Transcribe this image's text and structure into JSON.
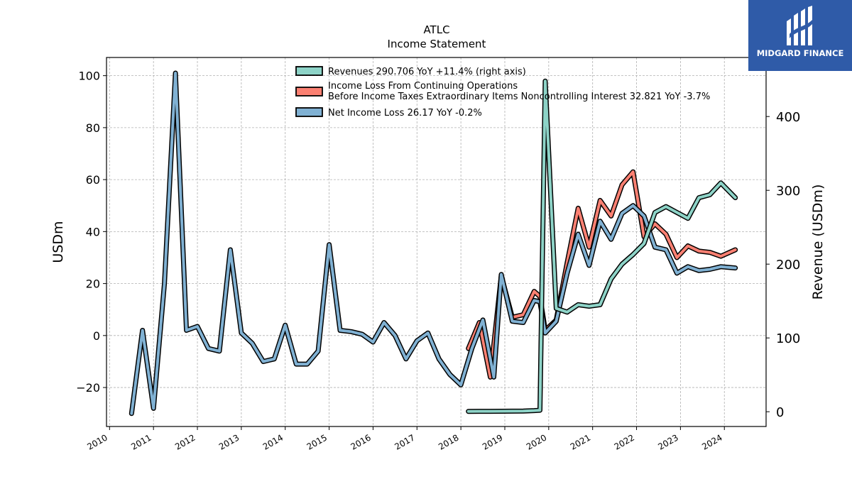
{
  "chart_data": {
    "type": "line",
    "title": "ATLC",
    "subtitle": "Income Statement",
    "ylabel": "USDm",
    "ylabel_right": "Revenue (USDm)",
    "ylim": [
      -35,
      107
    ],
    "ylim_right": [
      -20,
      480
    ],
    "yticks": [
      -20,
      0,
      20,
      40,
      60,
      80,
      100
    ],
    "yticks_labels": [
      "−20",
      "0",
      "20",
      "40",
      "60",
      "80",
      "100"
    ],
    "yticks_right": [
      0,
      100,
      200,
      300,
      400
    ],
    "xlim": [
      2009.93,
      2024.95
    ],
    "xticks": [
      "2010",
      "2011",
      "2012",
      "2013",
      "2014",
      "2015",
      "2016",
      "2017",
      "2018",
      "2019",
      "2020",
      "2021",
      "2022",
      "2023",
      "2024"
    ],
    "grid": true,
    "legend_position": "top-center",
    "series": [
      {
        "name": "Revenues  290.706 YoY +11.4% (right axis)",
        "color": "#8dd3c7",
        "axis": "right",
        "points": [
          [
            2018.17,
            0.5
          ],
          [
            2018.42,
            0.6
          ],
          [
            2018.67,
            0.6
          ],
          [
            2018.92,
            0.7
          ],
          [
            2019.17,
            0.8
          ],
          [
            2019.42,
            1.0
          ],
          [
            2019.67,
            1.5
          ],
          [
            2019.8,
            2.0
          ],
          [
            2019.92,
            448
          ],
          [
            2020.17,
            140
          ],
          [
            2020.42,
            135
          ],
          [
            2020.67,
            145
          ],
          [
            2020.92,
            143
          ],
          [
            2021.17,
            145
          ],
          [
            2021.42,
            180
          ],
          [
            2021.67,
            200
          ],
          [
            2021.92,
            213
          ],
          [
            2022.17,
            228
          ],
          [
            2022.42,
            270
          ],
          [
            2022.67,
            278
          ],
          [
            2022.92,
            270
          ],
          [
            2023.17,
            262
          ],
          [
            2023.42,
            290
          ],
          [
            2023.67,
            294
          ],
          [
            2023.92,
            310
          ],
          [
            2024.25,
            290
          ]
        ]
      },
      {
        "name": "Income Loss From Continuing Operations\nBefore Income Taxes Extraordinary Items Noncontrolling Interest  32.821 YoY -3.7%",
        "color": "#fb8072",
        "axis": "left",
        "points": [
          [
            2018.17,
            -5
          ],
          [
            2018.42,
            5
          ],
          [
            2018.67,
            -16
          ],
          [
            2018.92,
            23
          ],
          [
            2019.17,
            7
          ],
          [
            2019.42,
            8
          ],
          [
            2019.67,
            17
          ],
          [
            2019.8,
            15
          ],
          [
            2019.92,
            2
          ],
          [
            2020.17,
            6
          ],
          [
            2020.42,
            28
          ],
          [
            2020.67,
            49
          ],
          [
            2020.92,
            34
          ],
          [
            2021.17,
            52
          ],
          [
            2021.42,
            46
          ],
          [
            2021.67,
            58
          ],
          [
            2021.92,
            63
          ],
          [
            2022.17,
            38
          ],
          [
            2022.42,
            43
          ],
          [
            2022.67,
            39
          ],
          [
            2022.92,
            30
          ],
          [
            2023.17,
            34.5
          ],
          [
            2023.42,
            32.5
          ],
          [
            2023.67,
            32
          ],
          [
            2023.92,
            30.5
          ],
          [
            2024.25,
            33
          ]
        ]
      },
      {
        "name": "Net Income Loss  26.17 YoY -0.2%",
        "color": "#80b1d3",
        "axis": "left",
        "points": [
          [
            2010.5,
            -30
          ],
          [
            2010.75,
            2
          ],
          [
            2011.0,
            -28
          ],
          [
            2011.25,
            20
          ],
          [
            2011.5,
            101
          ],
          [
            2011.75,
            2
          ],
          [
            2012.0,
            3.5
          ],
          [
            2012.25,
            -5
          ],
          [
            2012.5,
            -6
          ],
          [
            2012.75,
            33
          ],
          [
            2013.0,
            1
          ],
          [
            2013.25,
            -3
          ],
          [
            2013.5,
            -10
          ],
          [
            2013.75,
            -9
          ],
          [
            2014.0,
            4
          ],
          [
            2014.25,
            -11
          ],
          [
            2014.5,
            -11
          ],
          [
            2014.75,
            -6
          ],
          [
            2015.0,
            35
          ],
          [
            2015.25,
            2
          ],
          [
            2015.5,
            1.5
          ],
          [
            2015.75,
            0.5
          ],
          [
            2016.0,
            -2.5
          ],
          [
            2016.25,
            5
          ],
          [
            2016.5,
            0
          ],
          [
            2016.75,
            -9
          ],
          [
            2017.0,
            -2
          ],
          [
            2017.25,
            1
          ],
          [
            2017.5,
            -9
          ],
          [
            2017.75,
            -15
          ],
          [
            2018.0,
            -19
          ],
          [
            2018.25,
            -5
          ],
          [
            2018.5,
            6
          ],
          [
            2018.75,
            -16
          ],
          [
            2018.92,
            23.5
          ],
          [
            2019.17,
            5.5
          ],
          [
            2019.42,
            5
          ],
          [
            2019.67,
            13.5
          ],
          [
            2019.8,
            13
          ],
          [
            2019.92,
            1
          ],
          [
            2020.17,
            5.5
          ],
          [
            2020.42,
            24
          ],
          [
            2020.67,
            39
          ],
          [
            2020.92,
            27
          ],
          [
            2021.17,
            44
          ],
          [
            2021.42,
            37
          ],
          [
            2021.67,
            47
          ],
          [
            2021.92,
            50
          ],
          [
            2022.17,
            46
          ],
          [
            2022.42,
            34
          ],
          [
            2022.67,
            33
          ],
          [
            2022.92,
            24
          ],
          [
            2023.17,
            26.5
          ],
          [
            2023.42,
            25
          ],
          [
            2023.67,
            25.5
          ],
          [
            2023.92,
            26.5
          ],
          [
            2024.25,
            26
          ]
        ]
      }
    ]
  },
  "logo": {
    "text": "MIDGARD FINANCE"
  },
  "colors": {
    "brand": "#2f5ba8",
    "edge": "#000000",
    "grid": "#b0b0b0"
  }
}
